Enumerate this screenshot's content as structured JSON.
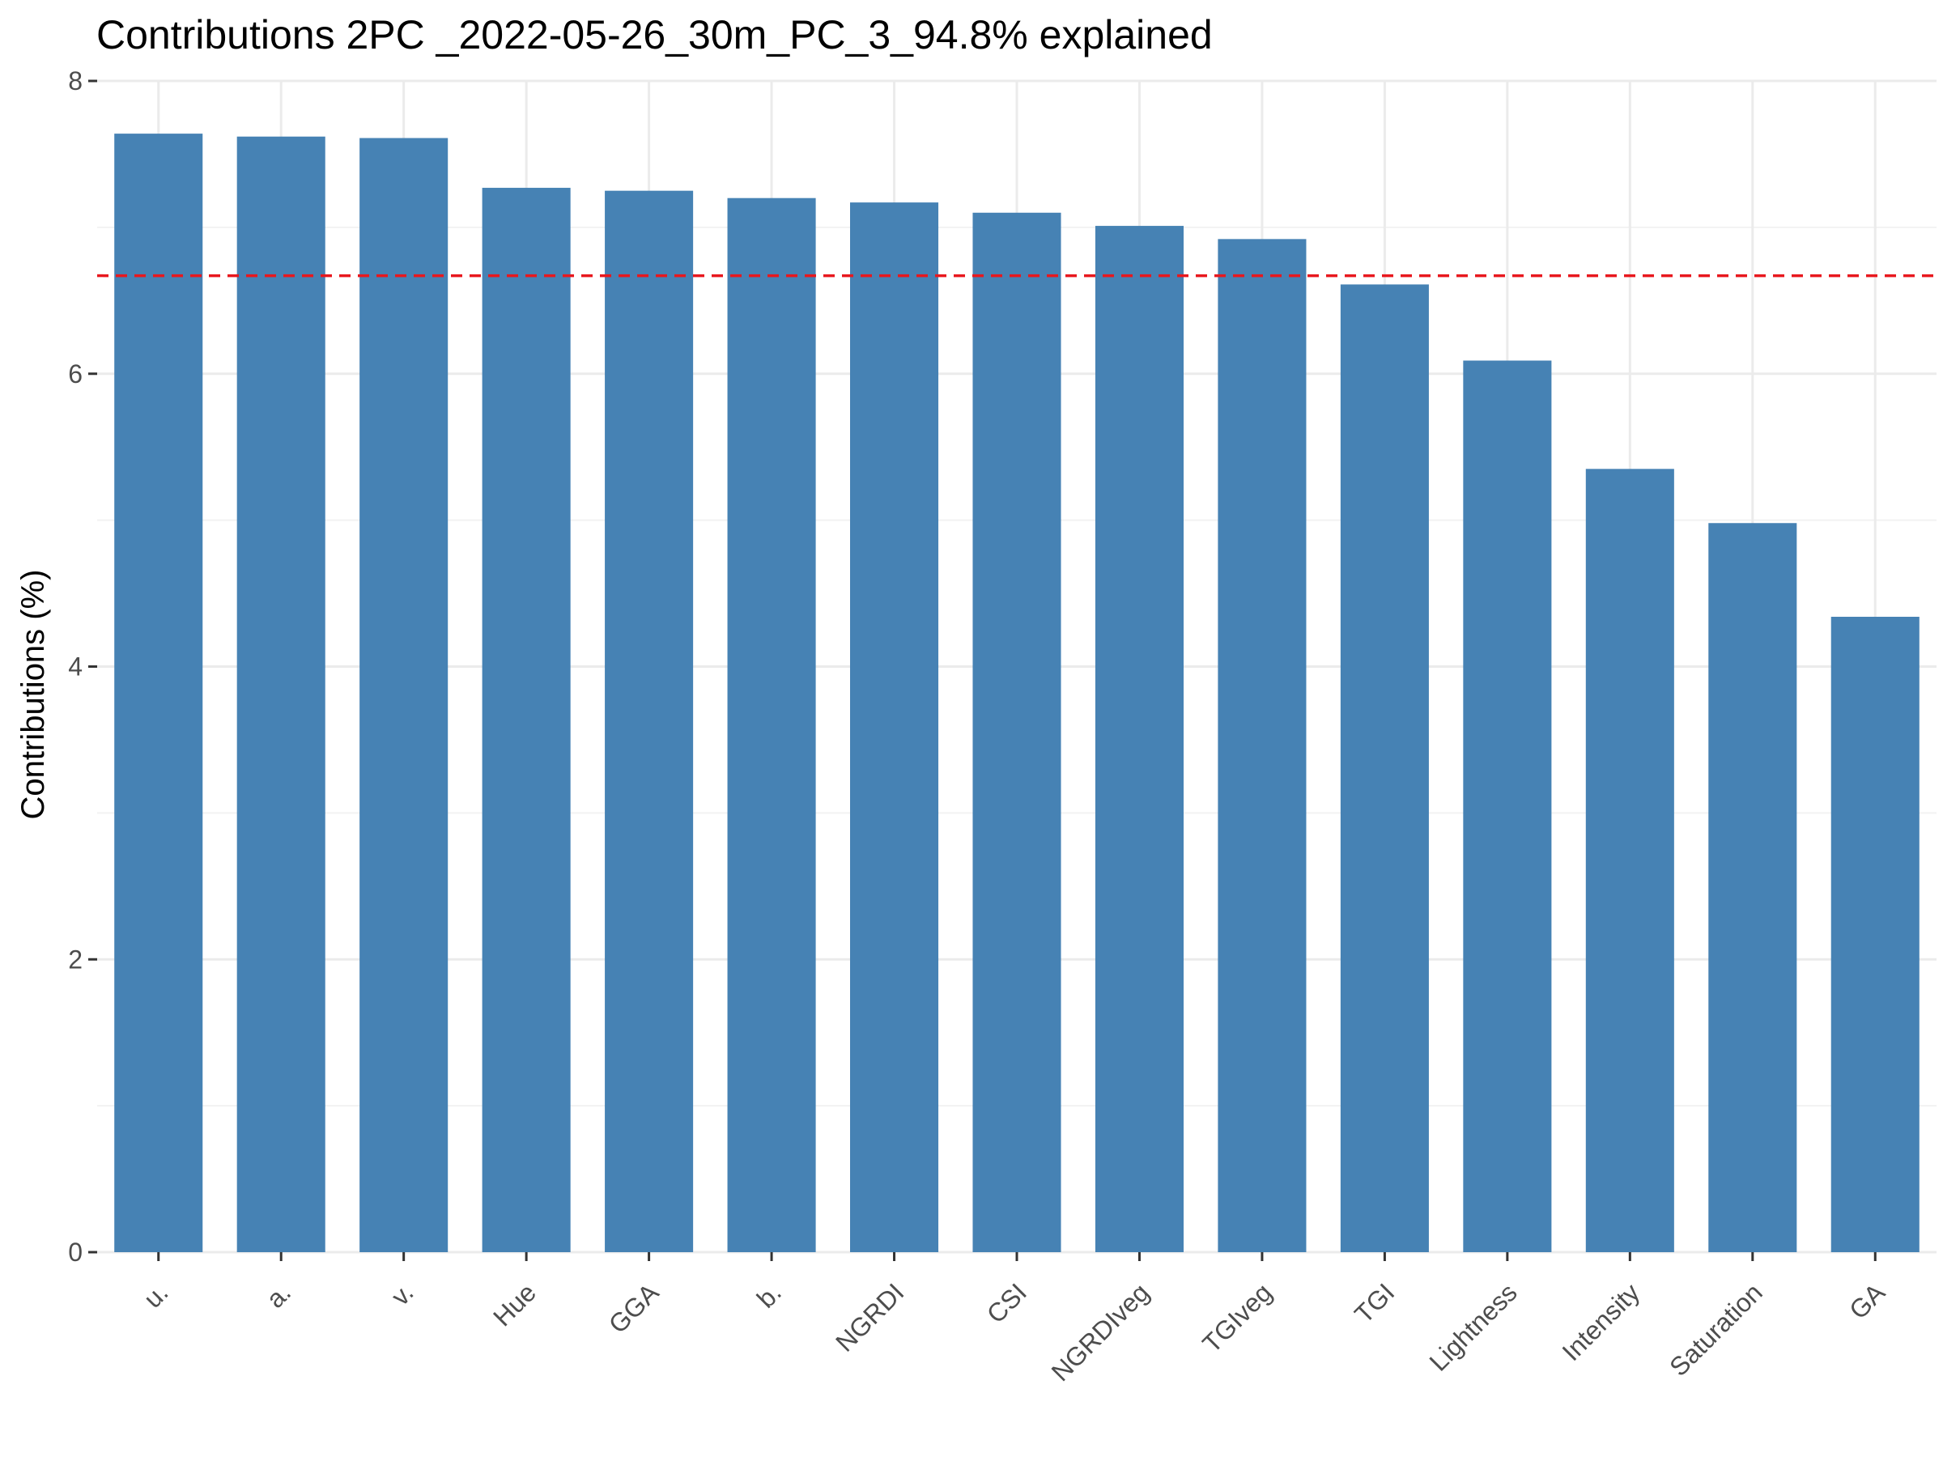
{
  "chart_data": {
    "type": "bar",
    "title": "Contributions 2PC _2022-05-26_30m_PC_3_94.8% explained",
    "xlabel": "",
    "ylabel": "Contributions (%)",
    "categories": [
      "u.",
      "a.",
      "v.",
      "Hue",
      "GGA",
      "b.",
      "NGRDI",
      "CSI",
      "NGRDIveg",
      "TGIveg",
      "TGI",
      "Lightness",
      "Intensity",
      "Saturation",
      "GA"
    ],
    "values": [
      7.64,
      7.62,
      7.61,
      7.27,
      7.25,
      7.2,
      7.17,
      7.1,
      7.01,
      6.92,
      6.61,
      6.09,
      5.35,
      4.98,
      4.34
    ],
    "reference_line": 6.67,
    "ylim": [
      0,
      8
    ],
    "yticks": [
      0,
      2,
      4,
      6,
      8
    ],
    "grid": true,
    "legend": "none",
    "colors": {
      "bar": "#4682b4",
      "reference_line": "#e8181e"
    }
  }
}
